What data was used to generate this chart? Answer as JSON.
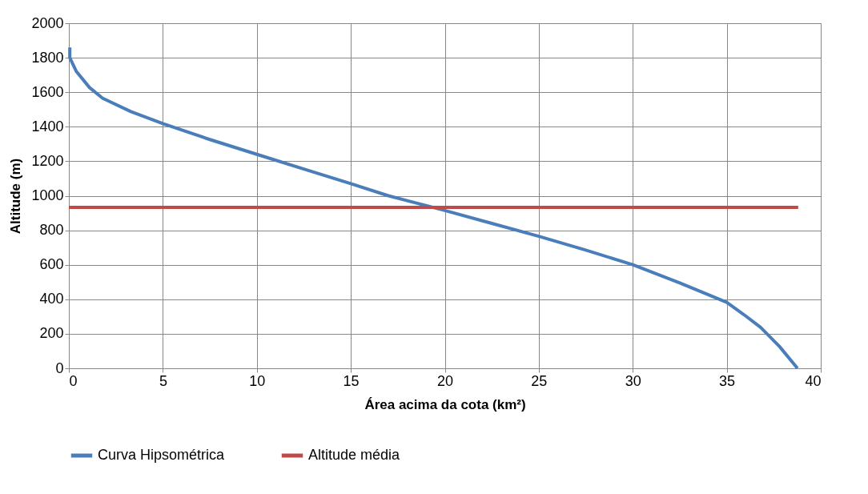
{
  "chart_data": {
    "type": "line",
    "xlabel": "Área acima da cota (km²)",
    "ylabel": "Altitude (m)",
    "xlim": [
      0,
      40
    ],
    "xticks": [
      0,
      5,
      10,
      15,
      20,
      25,
      30,
      35,
      40
    ],
    "ylim": [
      0,
      2000
    ],
    "yticks": [
      0,
      200,
      400,
      600,
      800,
      1000,
      1200,
      1400,
      1600,
      1800,
      2000
    ],
    "grid": true,
    "legend": "bottom",
    "marker": "none",
    "line_style": "solid",
    "series": [
      {
        "name": "Curva Hipsométrica",
        "color": "#4a7ebb",
        "x": [
          0.05,
          0.05,
          0.4,
          1.1,
          1.8,
          3.3,
          5.0,
          7.5,
          10.0,
          12.5,
          15.0,
          17.0,
          20.0,
          22.5,
          25.0,
          27.5,
          30.0,
          32.5,
          35.0,
          35.9,
          36.8,
          37.8,
          38.76
        ],
        "values": [
          1860,
          1800,
          1720,
          1627,
          1565,
          1488,
          1418,
          1326,
          1240,
          1155,
          1070,
          1000,
          915,
          840,
          765,
          685,
          600,
          495,
          382,
          312,
          237,
          127,
          0
        ]
      },
      {
        "name": "Altitude média",
        "color": "#be4b48",
        "x": [
          0,
          38.8
        ],
        "values": [
          933,
          933
        ]
      }
    ]
  }
}
